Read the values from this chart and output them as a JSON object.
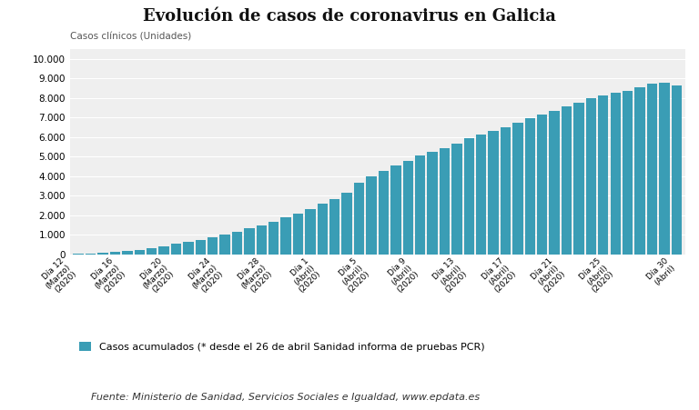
{
  "title": "Evolución de casos de coronavirus en Galicia",
  "ylabel": "Casos clínicos (Unidades)",
  "bar_color": "#3a9db5",
  "background_color": "#ffffff",
  "plot_bg_color": "#efefef",
  "legend_label": "Casos acumulados (* desde el 26 de abril Sanidad informa de pruebas PCR)",
  "source_text": "Fuente: Ministerio de Sanidad, Servicios Sociales e Igualdad, www.epdata.es",
  "ylim": [
    0,
    10500
  ],
  "yticks": [
    0,
    1000,
    2000,
    3000,
    4000,
    5000,
    6000,
    7000,
    8000,
    9000,
    10000
  ],
  "tick_positions": [
    0,
    4,
    8,
    12,
    16,
    20,
    24,
    28,
    32,
    36,
    40,
    44,
    49
  ],
  "tick_labels": [
    "Día 12\n(Marzo)\n(2020)",
    "Día 16\n(Marzo)\n(2020)",
    "Día 20\n(Marzo)\n(2020)",
    "Día 24\n(Marzo)\n(2020)",
    "Día 28\n(Marzo)\n(2020)",
    "Día 1\n(Abril)\n(2020)",
    "Día 5\n(Abril)\n(2020)",
    "Día 9\n(Abril)\n(2020)",
    "Día 13\n(Abril)\n(2020)",
    "Día 17\n(Abril)\n(2020)",
    "Día 21\n(Abril)\n(2020)",
    "Día 25\n(Abril)\n(2020)",
    "Día 30\n(Abril)"
  ],
  "values": [
    25,
    45,
    75,
    115,
    165,
    230,
    310,
    400,
    520,
    635,
    745,
    860,
    1000,
    1150,
    1310,
    1480,
    1670,
    1870,
    2080,
    2300,
    2580,
    2840,
    3130,
    3680,
    4010,
    4280,
    4530,
    4790,
    5050,
    5230,
    5440,
    5650,
    5930,
    6120,
    6310,
    6500,
    6720,
    6980,
    7150,
    7330,
    7570,
    7760,
    8000,
    8130,
    8250,
    8380,
    8560,
    8730,
    8790,
    8650
  ]
}
